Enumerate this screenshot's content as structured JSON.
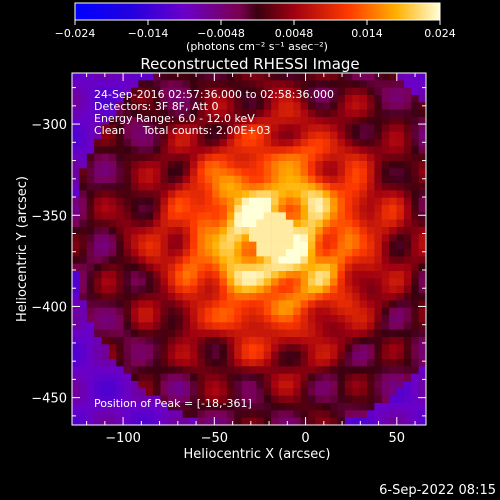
{
  "colorbar": {
    "ticks": [
      "-0.024",
      "-0.014",
      "-0.0048",
      "0.0048",
      "0.014",
      "0.024"
    ],
    "units_label": "(photons cm⁻² s⁻¹ asec⁻²)"
  },
  "chart_data": {
    "type": "heatmap",
    "title": "Reconstructed RHESSI Image",
    "xlabel": "Heliocentric X (arcsec)",
    "ylabel": "Heliocentric Y (arcsec)",
    "xlim": [
      -128,
      66
    ],
    "ylim": [
      -465,
      -272
    ],
    "x_ticks": [
      -100,
      -50,
      0,
      50
    ],
    "y_ticks": [
      -300,
      -350,
      -400,
      -450
    ],
    "x_tick_labels": [
      "−100",
      "−50",
      "0",
      "50"
    ],
    "y_tick_labels": [
      "−300",
      "−350",
      "−400",
      "−450"
    ],
    "colormap": "rhessi-hot",
    "value_range": [
      -0.024,
      0.024
    ],
    "peak": {
      "x": -18,
      "y": -361
    },
    "annotations": [
      "24-Sep-2016 02:57:36.000 to 02:58:36.000",
      "Detectors: 3F 8F, Att 0",
      "Energy Range: 6.0 - 12.0 keV",
      "Clean     Total counts: 2.00E+03"
    ],
    "peak_label": "Position of Peak = [-18,-361]"
  },
  "footer": {
    "timestamp": "6-Sep-2022 08:15"
  }
}
